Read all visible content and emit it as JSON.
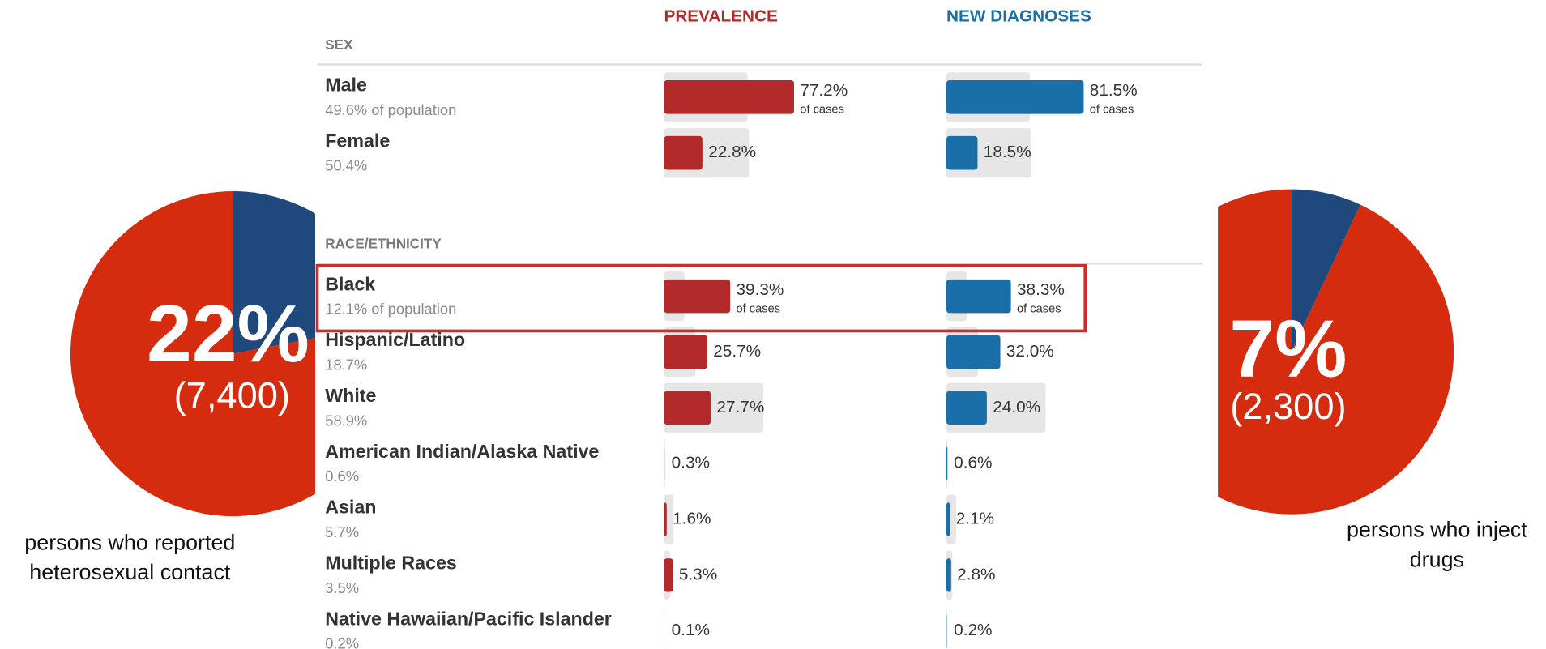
{
  "chart_data": [
    {
      "type": "bar",
      "xlim": [
        0,
        100
      ],
      "series": [
        {
          "name": "PREVALENCE",
          "color": "#b22a2a"
        },
        {
          "name": "NEW DIAGNOSES",
          "color": "#1a6fa8"
        }
      ],
      "sections": [
        {
          "title": "SEX",
          "categories": [
            "Male",
            "Female"
          ],
          "population": [
            49.6,
            50.4
          ],
          "population_labels": [
            "49.6% of population",
            "50.4%"
          ],
          "values": [
            [
              77.2,
              22.8
            ],
            [
              81.5,
              18.5
            ]
          ],
          "value_labels": [
            [
              "77.2%",
              "22.8%"
            ],
            [
              "81.5%",
              "18.5%"
            ]
          ],
          "value_notes": [
            [
              "of cases",
              null
            ],
            [
              "of cases",
              null
            ]
          ]
        },
        {
          "title": "RACE/ETHNICITY",
          "categories": [
            "Black",
            "Hispanic/Latino",
            "White",
            "American Indian/Alaska Native",
            "Asian",
            "Multiple Races",
            "Native Hawaiian/Pacific Islander"
          ],
          "population": [
            12.1,
            18.7,
            58.9,
            0.6,
            5.7,
            3.5,
            0.2
          ],
          "population_labels": [
            "12.1% of population",
            "18.7%",
            "58.9%",
            "0.6%",
            "5.7%",
            "3.5%",
            "0.2%"
          ],
          "values": [
            [
              39.3,
              25.7,
              27.7,
              0.3,
              1.6,
              5.3,
              0.1
            ],
            [
              38.3,
              32.0,
              24.0,
              0.6,
              2.1,
              2.8,
              0.2
            ]
          ],
          "value_labels": [
            [
              "39.3%",
              "25.7%",
              "27.7%",
              "0.3%",
              "1.6%",
              "5.3%",
              "0.1%"
            ],
            [
              "38.3%",
              "32.0%",
              "24.0%",
              "0.6%",
              "2.1%",
              "2.8%",
              "0.2%"
            ]
          ],
          "value_notes": [
            [
              "of cases",
              null,
              null,
              null,
              null,
              null,
              null
            ],
            [
              "of cases",
              null,
              null,
              null,
              null,
              null,
              null
            ]
          ]
        }
      ]
    },
    {
      "type": "pie",
      "values": [
        22,
        78
      ],
      "colors": [
        "#1f497d",
        "#d52b0e"
      ],
      "value_labels": [
        "22%",
        null
      ],
      "annotation": "(7,400)",
      "caption": [
        "persons who reported",
        "heterosexual contact"
      ]
    },
    {
      "type": "pie",
      "values": [
        7,
        93
      ],
      "colors": [
        "#1f497d",
        "#d52b0e"
      ],
      "value_labels": [
        "7%",
        null
      ],
      "annotation": "(2,300)",
      "caption": [
        "persons who inject",
        "drugs"
      ]
    }
  ]
}
